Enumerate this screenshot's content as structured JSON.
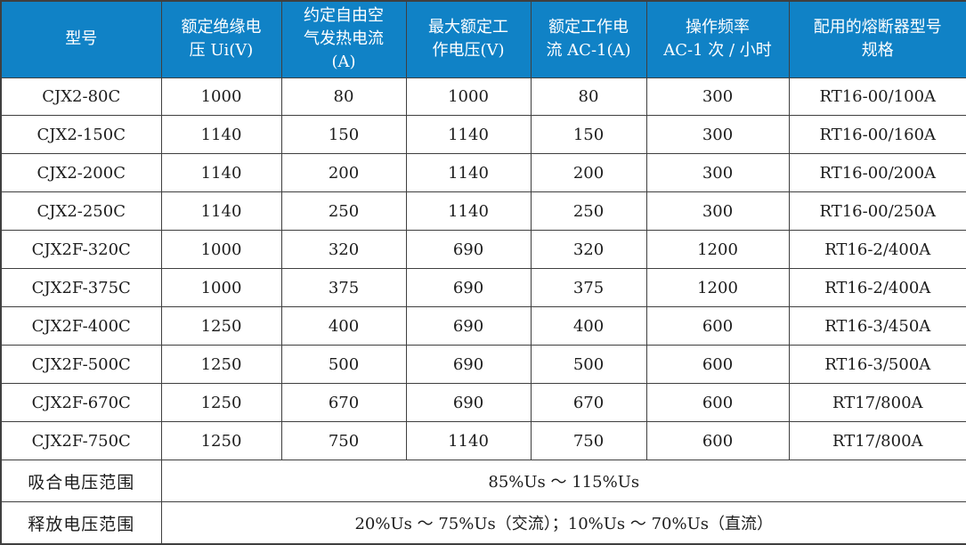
{
  "table": {
    "colors": {
      "header_bg": "#1082C6",
      "header_text": "#FFFFFF",
      "border": "#3f3f3f",
      "body_text": "#1c1c1c"
    },
    "headers": [
      "型号",
      "额定绝缘电\n压 Ui(V)",
      "约定自由空\n气发热电流\n(A)",
      "最大额定工\n作电压(V)",
      "额定工作电\n流 AC-1(A)",
      "操作频率\nAC-1 次 / 小时",
      "配用的熔断器型号\n规格"
    ],
    "rows": [
      [
        "CJX2-80C",
        "1000",
        "80",
        "1000",
        "80",
        "300",
        "RT16-00/100A"
      ],
      [
        "CJX2-150C",
        "1140",
        "150",
        "1140",
        "150",
        "300",
        "RT16-00/160A"
      ],
      [
        "CJX2-200C",
        "1140",
        "200",
        "1140",
        "200",
        "300",
        "RT16-00/200A"
      ],
      [
        "CJX2-250C",
        "1140",
        "250",
        "1140",
        "250",
        "300",
        "RT16-00/250A"
      ],
      [
        "CJX2F-320C",
        "1000",
        "320",
        "690",
        "320",
        "1200",
        "RT16-2/400A"
      ],
      [
        "CJX2F-375C",
        "1000",
        "375",
        "690",
        "375",
        "1200",
        "RT16-2/400A"
      ],
      [
        "CJX2F-400C",
        "1250",
        "400",
        "690",
        "400",
        "600",
        "RT16-3/450A"
      ],
      [
        "CJX2F-500C",
        "1250",
        "500",
        "690",
        "500",
        "600",
        "RT16-3/500A"
      ],
      [
        "CJX2F-670C",
        "1250",
        "670",
        "690",
        "670",
        "600",
        "RT17/800A"
      ],
      [
        "CJX2F-750C",
        "1250",
        "750",
        "1140",
        "750",
        "600",
        "RT17/800A"
      ]
    ],
    "footer_rows": [
      {
        "label": "吸合电压范围",
        "value": "85%Us ～ 115%Us"
      },
      {
        "label": "释放电压范围",
        "value": "20%Us ～ 75%Us（交流）；10%Us ～ 70%Us（直流）"
      }
    ]
  }
}
